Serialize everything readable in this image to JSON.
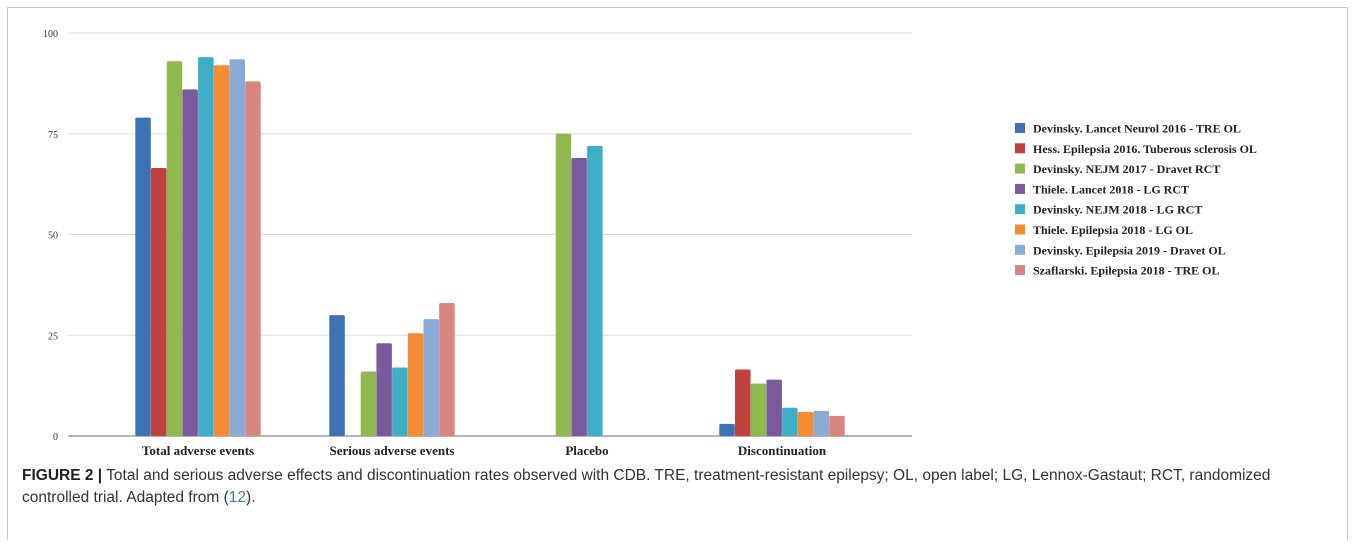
{
  "chart_data": {
    "type": "bar",
    "categories": [
      "Total adverse events",
      "Serious adverse events",
      "Placebo",
      "Discontinuation"
    ],
    "yticks": [
      "0",
      "25",
      "50",
      "75",
      "100"
    ],
    "ylim": [
      0,
      100
    ],
    "grid": true,
    "legend_position": "right",
    "series": [
      {
        "name": "Devinsky. Lancet Neurol 2016 - TRE OL",
        "color": "#3d72b4",
        "values": [
          79,
          30,
          null,
          3
        ]
      },
      {
        "name": "Hess. Epilepsia 2016. Tuberous sclerosis OL",
        "color": "#c0423c",
        "values": [
          66.5,
          null,
          null,
          16.5
        ]
      },
      {
        "name": "Devinsky. NEJM 2017 - Dravet RCT",
        "color": "#8fb84e",
        "values": [
          93,
          16,
          75,
          13
        ]
      },
      {
        "name": "Thiele. Lancet 2018  - LG RCT",
        "color": "#7a5a9d",
        "values": [
          86,
          23,
          69,
          14
        ]
      },
      {
        "name": "Devinsky. NEJM 2018 - LG RCT",
        "color": "#3eaec6",
        "values": [
          94,
          17,
          72,
          7
        ]
      },
      {
        "name": "Thiele. Epilepsia 2018  - LG OL",
        "color": "#f48c36",
        "values": [
          92,
          25.5,
          null,
          6
        ]
      },
      {
        "name": "Devinsky. Epilepsia 2019 - Dravet OL",
        "color": "#8aaad8",
        "values": [
          93.5,
          29,
          null,
          6.2
        ]
      },
      {
        "name": "Szaflarski. Epilepsia 2018 - TRE OL",
        "color": "#d8847f",
        "values": [
          88,
          33,
          null,
          5
        ]
      }
    ]
  },
  "caption": {
    "label": "FIGURE 2 |",
    "text": " Total and serious adverse effects and discontinuation rates observed with CDB. TRE, treatment-resistant epilepsy; OL, open label; LG, Lennox-Gastaut; RCT, randomized controlled trial. Adapted from (",
    "ref": "12",
    "end": ")."
  }
}
